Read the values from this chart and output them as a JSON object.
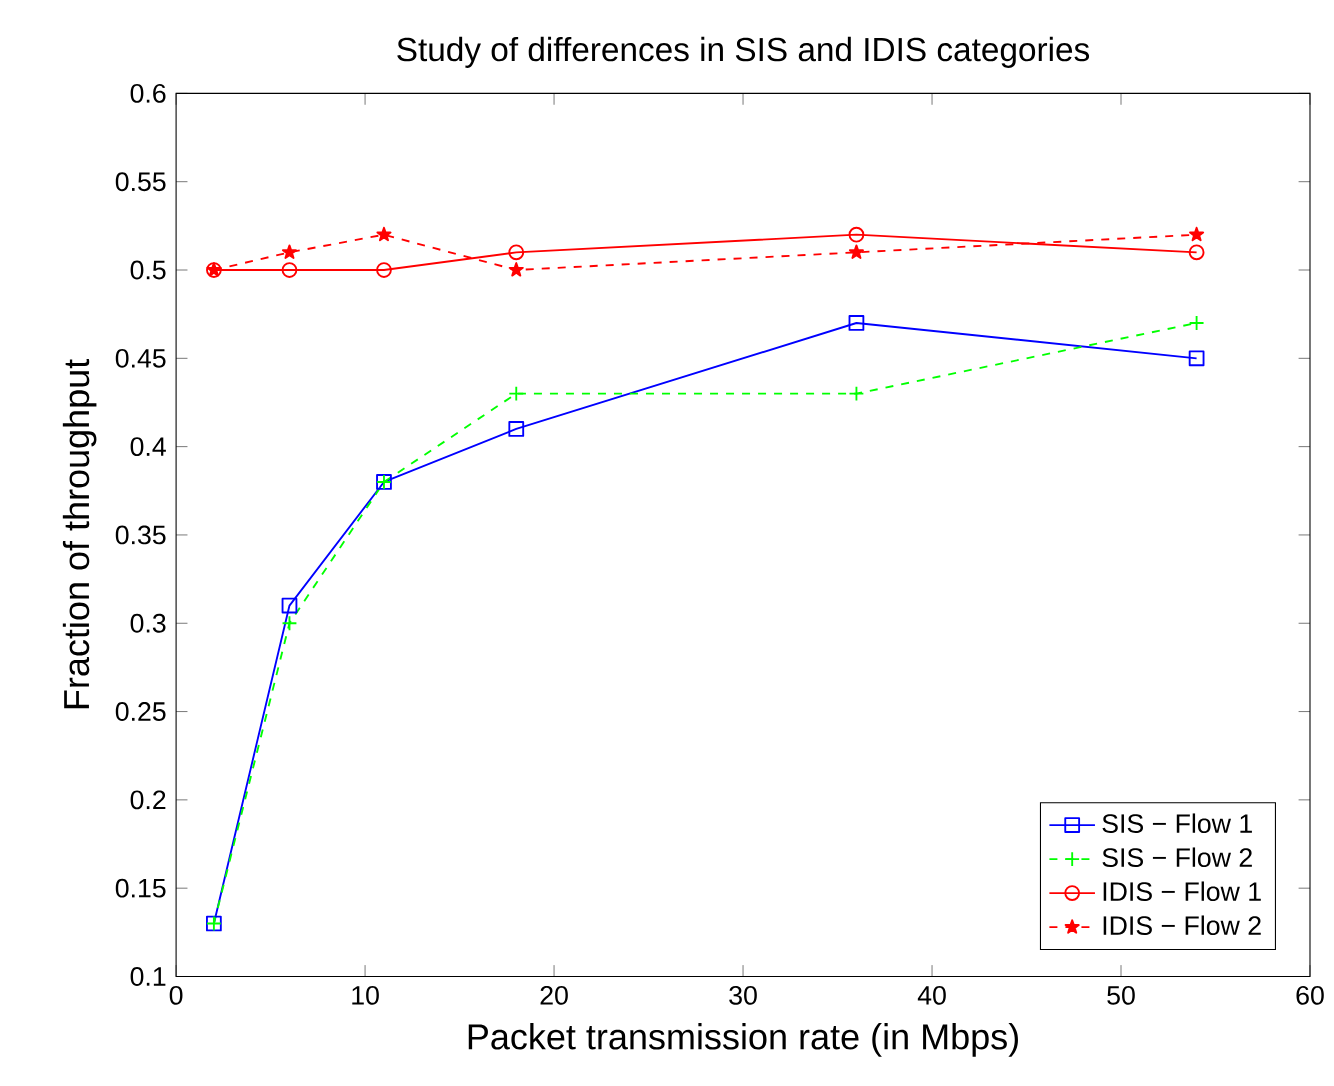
{
  "chart_data": {
    "type": "line",
    "title": "Study of differences in SIS and IDIS categories",
    "xlabel": "Packet transmission rate (in Mbps)",
    "ylabel": "Fraction of throughput",
    "x": [
      2,
      6,
      11,
      18,
      36,
      54
    ],
    "series": [
      {
        "name": "SIS − Flow 1",
        "color": "#0000ff",
        "marker": "square",
        "line_style": "solid",
        "values": [
          0.13,
          0.31,
          0.38,
          0.41,
          0.47,
          0.45
        ]
      },
      {
        "name": "SIS − Flow 2",
        "color": "#00ff00",
        "marker": "cross",
        "line_style": "dashed",
        "values": [
          0.13,
          0.3,
          0.38,
          0.43,
          0.43,
          0.47
        ]
      },
      {
        "name": "IDIS − Flow 1",
        "color": "#ff0000",
        "marker": "circle",
        "line_style": "solid",
        "values": [
          0.5,
          0.5,
          0.5,
          0.51,
          0.52,
          0.51
        ]
      },
      {
        "name": "IDIS − Flow 2",
        "color": "#ff0000",
        "marker": "star",
        "line_style": "dashed",
        "values": [
          0.5,
          0.51,
          0.52,
          0.5,
          0.51,
          0.52
        ]
      }
    ],
    "xlim": [
      0,
      60
    ],
    "xticks": [
      0,
      10,
      20,
      30,
      40,
      50,
      60
    ],
    "ylim": [
      0.1,
      0.6
    ],
    "yticks": [
      0.1,
      0.15,
      0.2,
      0.25,
      0.3,
      0.35,
      0.4,
      0.45,
      0.5,
      0.55,
      0.6
    ],
    "grid": false,
    "legend": "bottom right"
  }
}
